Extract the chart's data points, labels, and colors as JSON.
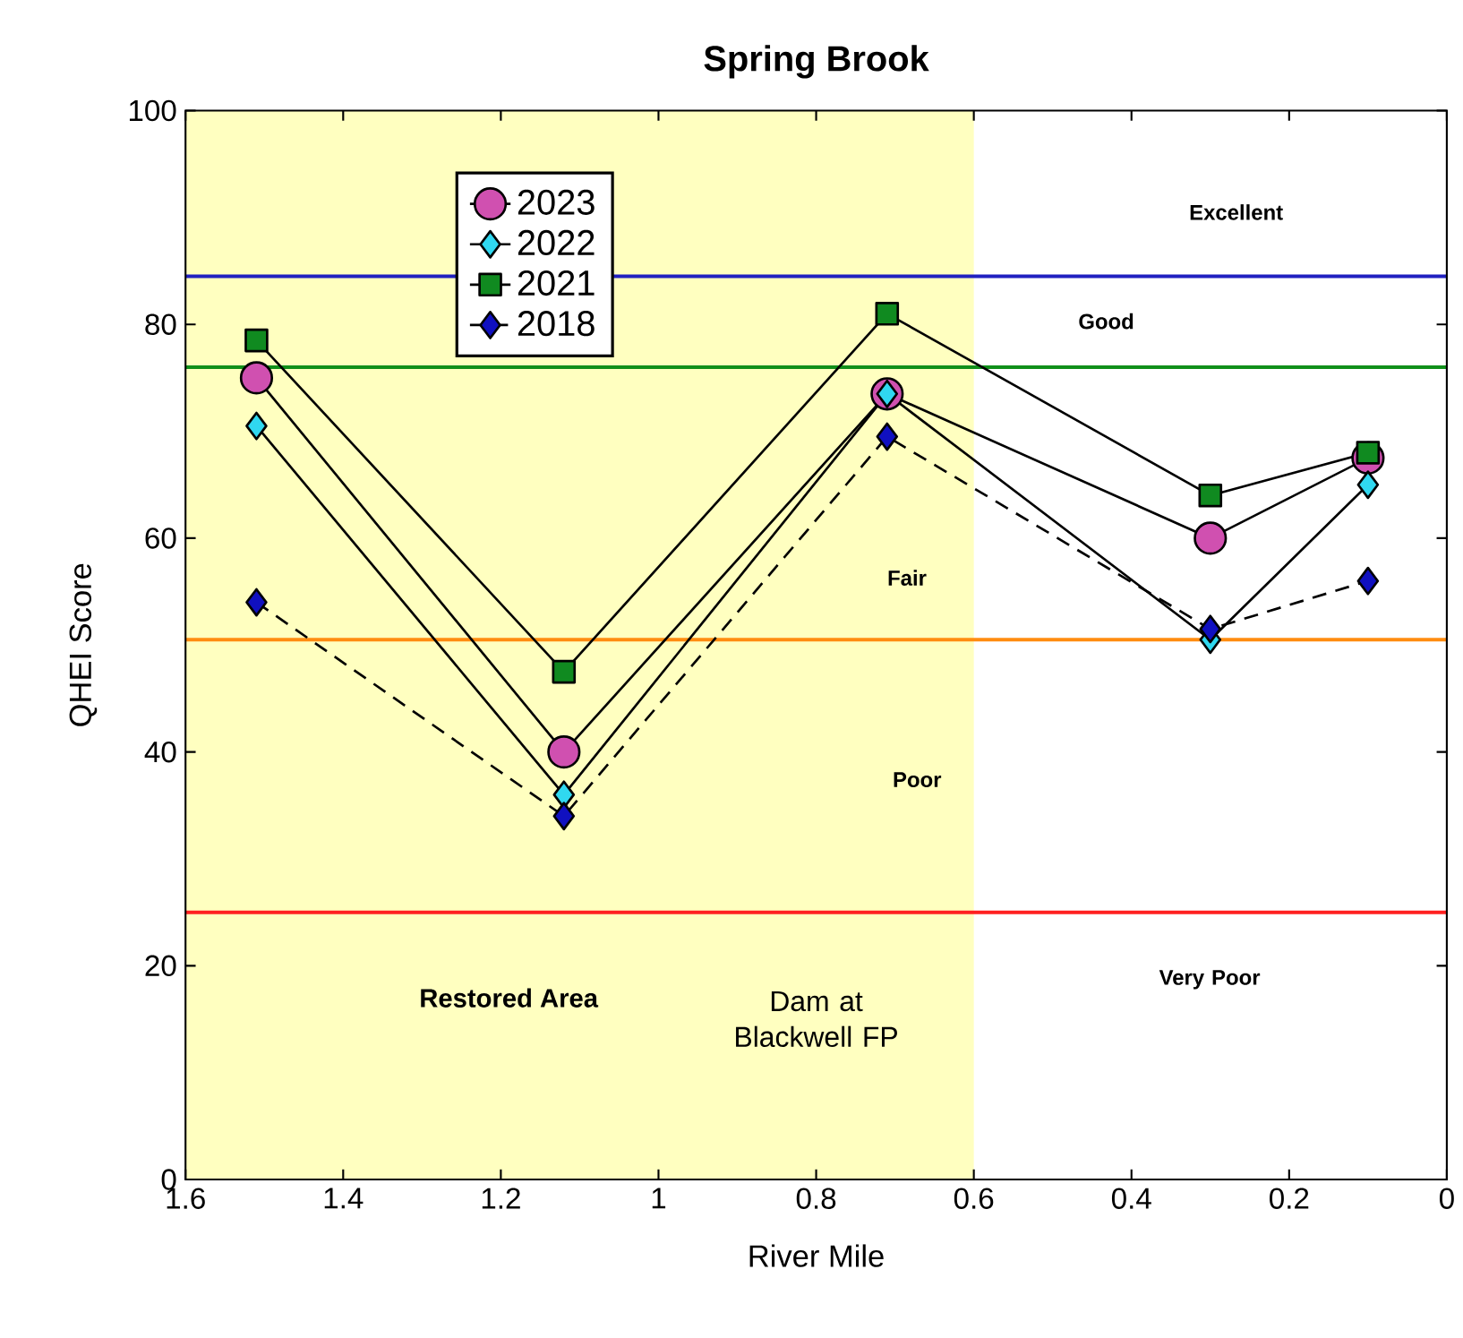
{
  "chart_data": {
    "type": "line",
    "title": "Spring Brook",
    "xlabel": "River Mile",
    "ylabel": "QHEI Score",
    "x": [
      1.51,
      1.12,
      0.71,
      0.3,
      0.1
    ],
    "series": [
      {
        "name": "2023",
        "color": "#d050b0",
        "marker": "circle",
        "line_style": "solid",
        "values": [
          75,
          40,
          73.5,
          60,
          67.5
        ]
      },
      {
        "name": "2022",
        "color": "#30d8f0",
        "marker": "diamond",
        "line_style": "solid",
        "values": [
          70.5,
          36,
          73.5,
          50.5,
          65
        ]
      },
      {
        "name": "2021",
        "color": "#108a20",
        "marker": "square",
        "line_style": "solid",
        "values": [
          78.5,
          47.5,
          81,
          64,
          68
        ]
      },
      {
        "name": "2018",
        "color": "#1010c0",
        "marker": "diamond",
        "line_style": "dashed",
        "values": [
          54,
          34,
          69.5,
          51.5,
          56
        ]
      }
    ],
    "xlim": [
      1.6,
      0
    ],
    "ylim": [
      0,
      100
    ],
    "xticks": [
      1.6,
      1.4,
      1.2,
      1,
      0.8,
      0.6,
      0.4,
      0.2,
      0
    ],
    "yticks": [
      0,
      20,
      40,
      60,
      80,
      100
    ],
    "ref_lines": [
      {
        "axis": "y",
        "value": 84.5,
        "color": "#2020c0"
      },
      {
        "axis": "y",
        "value": 76,
        "color": "#10901a"
      },
      {
        "axis": "y",
        "value": 50.5,
        "color": "#ff8c10"
      },
      {
        "axis": "y",
        "value": 25,
        "color": "#ff2020"
      }
    ],
    "bands": [
      {
        "axis": "x",
        "from": 1.6,
        "to": 0.6,
        "label": "Restored Area",
        "color": "#ffffc0"
      }
    ],
    "annotations": [
      "Excellent",
      "Good",
      "Fair",
      "Poor",
      "Very Poor",
      "Dam at Blackwell FP"
    ],
    "legend": "top left"
  }
}
